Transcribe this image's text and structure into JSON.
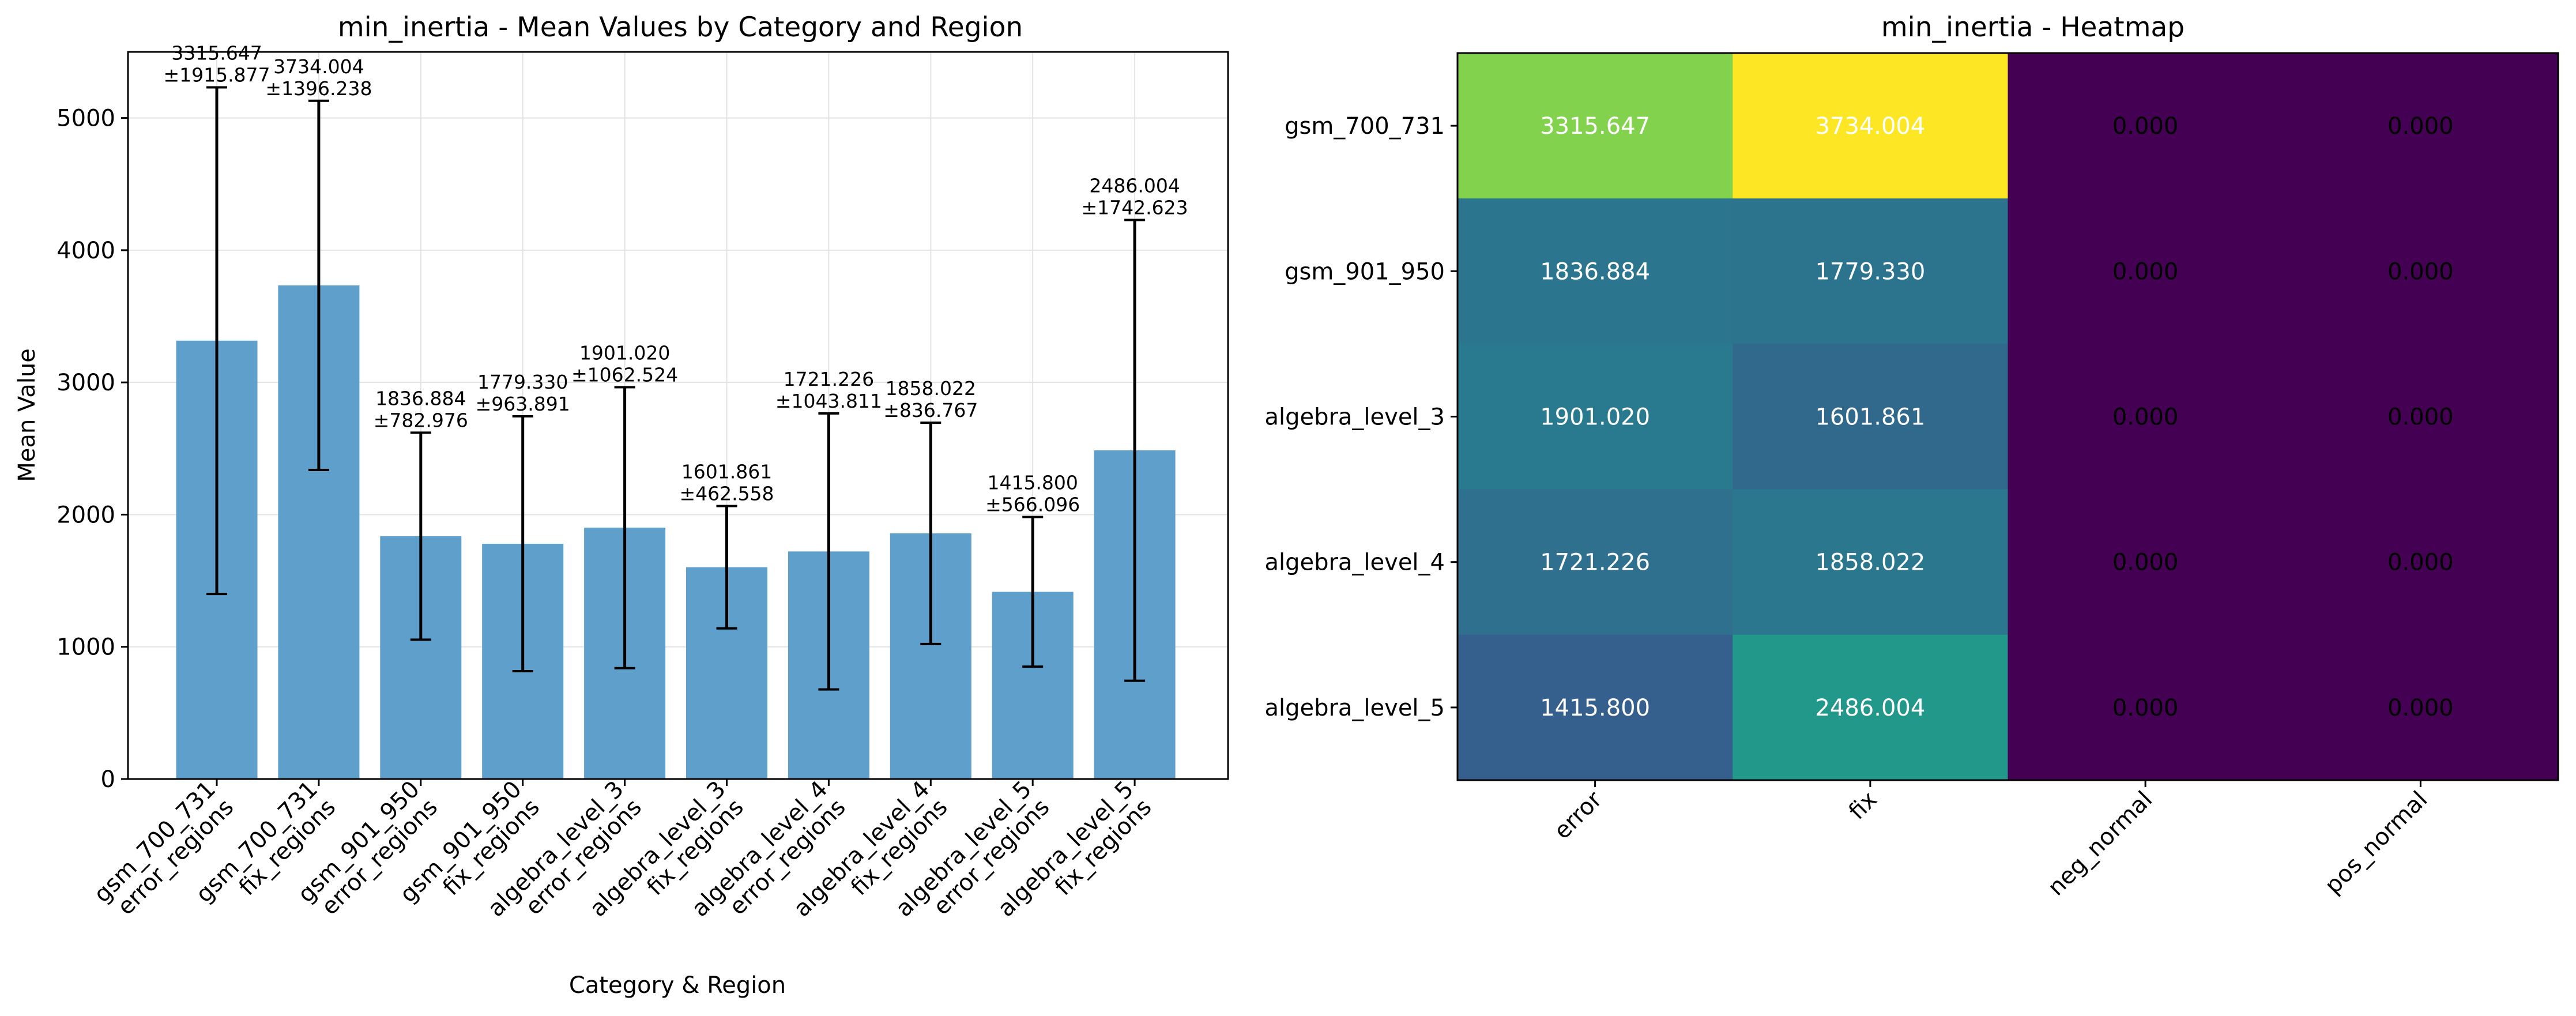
{
  "chart_data": [
    {
      "type": "bar",
      "title": "min_inertia - Mean Values by Category and Region",
      "xlabel": "Category & Region",
      "ylabel": "Mean Value",
      "ylim": [
        0,
        5500
      ],
      "yticks": [
        0,
        1000,
        2000,
        3000,
        4000,
        5000
      ],
      "grid": true,
      "bar_color": "#5f9fcc",
      "categories": [
        [
          "gsm_700_731",
          "error_regions"
        ],
        [
          "gsm_700_731",
          "fix_regions"
        ],
        [
          "gsm_901_950",
          "error_regions"
        ],
        [
          "gsm_901_950",
          "fix_regions"
        ],
        [
          "algebra_level_3",
          "error_regions"
        ],
        [
          "algebra_level_3",
          "fix_regions"
        ],
        [
          "algebra_level_4",
          "error_regions"
        ],
        [
          "algebra_level_4",
          "fix_regions"
        ],
        [
          "algebra_level_5",
          "error_regions"
        ],
        [
          "algebra_level_5",
          "fix_regions"
        ]
      ],
      "values": [
        3315.647,
        3734.004,
        1836.884,
        1779.33,
        1901.02,
        1601.861,
        1721.226,
        1858.022,
        1415.8,
        2486.004
      ],
      "errors": [
        1915.877,
        1396.238,
        782.976,
        963.891,
        1062.524,
        462.558,
        1043.811,
        836.767,
        566.096,
        1742.623
      ],
      "value_labels": [
        "3315.647",
        "3734.004",
        "1836.884",
        "1779.330",
        "1901.020",
        "1601.861",
        "1721.226",
        "1858.022",
        "1415.800",
        "2486.004"
      ],
      "error_labels": [
        "±1915.877",
        "±1396.238",
        "±782.976",
        "±963.891",
        "±1062.524",
        "±462.558",
        "±1043.811",
        "±836.767",
        "±566.096",
        "±1742.623"
      ]
    },
    {
      "type": "heatmap",
      "title": "min_inertia - Heatmap",
      "rows": [
        "gsm_700_731",
        "gsm_901_950",
        "algebra_level_3",
        "algebra_level_4",
        "algebra_level_5"
      ],
      "columns": [
        "error",
        "fix",
        "neg_normal",
        "pos_normal"
      ],
      "values": [
        [
          3315.647,
          3734.004,
          0.0,
          0.0
        ],
        [
          1836.884,
          1779.33,
          0.0,
          0.0
        ],
        [
          1901.02,
          1601.861,
          0.0,
          0.0
        ],
        [
          1721.226,
          1858.022,
          0.0,
          0.0
        ],
        [
          1415.8,
          2486.004,
          0.0,
          0.0
        ]
      ],
      "cell_labels": [
        [
          "3315.647",
          "3734.004",
          "0.000",
          "0.000"
        ],
        [
          "1836.884",
          "1779.330",
          "0.000",
          "0.000"
        ],
        [
          "1901.020",
          "1601.861",
          "0.000",
          "0.000"
        ],
        [
          "1721.226",
          "1858.022",
          "0.000",
          "0.000"
        ],
        [
          "1415.800",
          "2486.004",
          "0.000",
          "0.000"
        ]
      ],
      "colormap": "viridis",
      "value_range": [
        0,
        3734.004
      ]
    }
  ]
}
